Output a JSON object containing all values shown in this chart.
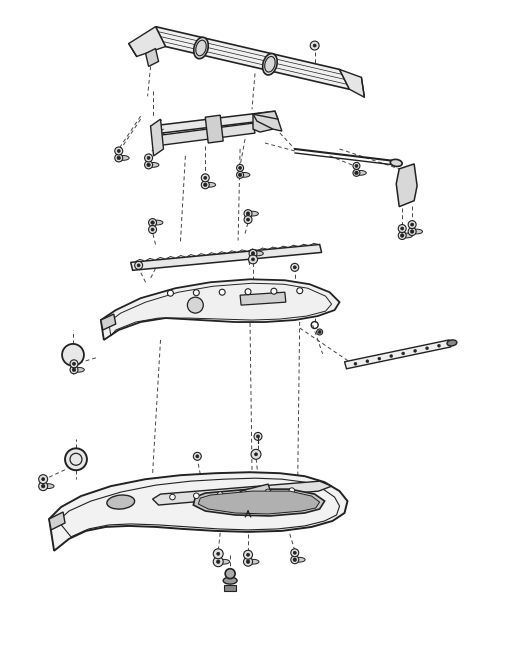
{
  "bg_color": "#ffffff",
  "line_color": "#222222",
  "dashed_color": "#444444",
  "fig_width": 5.11,
  "fig_height": 6.57,
  "dpi": 100
}
